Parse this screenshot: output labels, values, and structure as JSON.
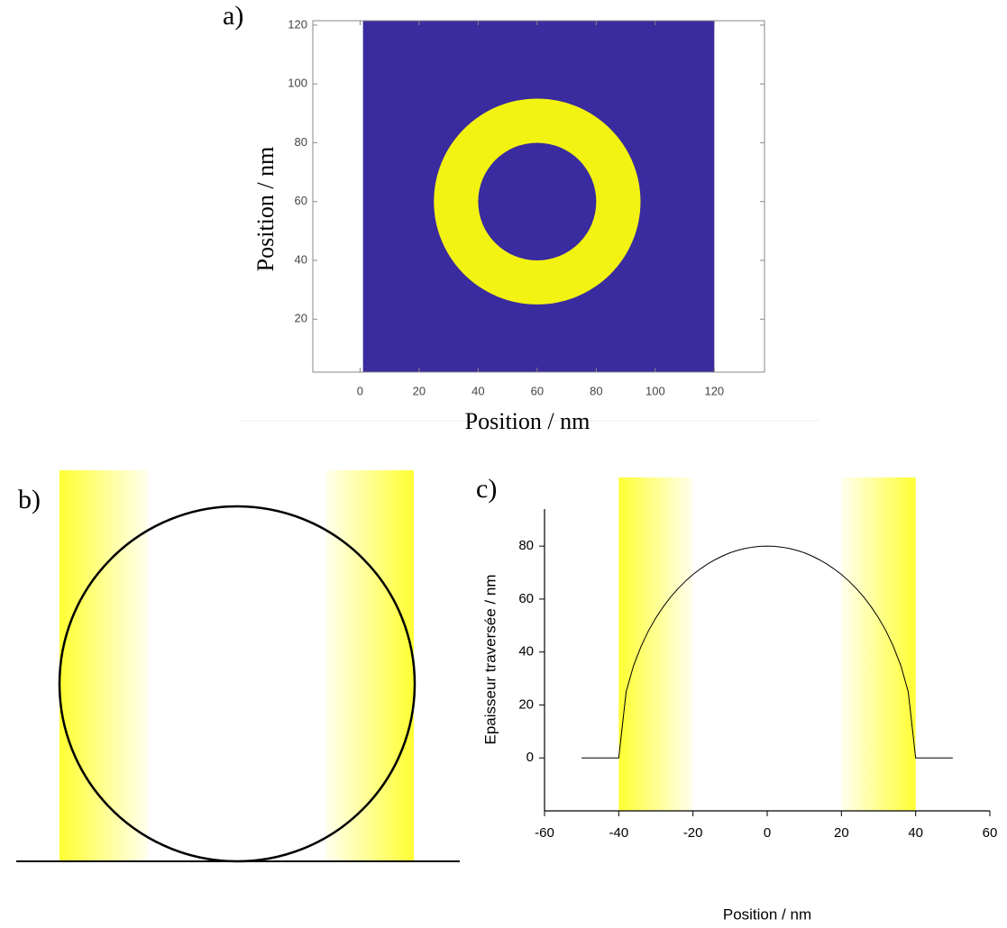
{
  "chart_data": [
    {
      "type": "heatmap",
      "label": "a)",
      "xlabel": "Position / nm",
      "ylabel": "Position / nm",
      "xlim": [
        -16,
        137
      ],
      "ylim": [
        2,
        121.5
      ],
      "xticks": [
        0,
        20,
        40,
        60,
        80,
        100,
        120
      ],
      "yticks": [
        20,
        40,
        60,
        80,
        100,
        120
      ],
      "image_xlim": [
        1,
        120
      ],
      "image_ylim": [
        2,
        121.5
      ],
      "background_color": "#3a2b9e",
      "ring_color": "#f3f313",
      "ring": {
        "center": [
          60,
          60
        ],
        "inner_radius": 20,
        "outer_radius": 35
      }
    },
    {
      "type": "diagram",
      "label": "b)"
    },
    {
      "type": "line",
      "label": "c)",
      "xlabel": "Position / nm",
      "ylabel": "Epaisseur traversée / nm",
      "xlim": [
        -60,
        60
      ],
      "ylim": [
        -20,
        94
      ],
      "xticks": [
        -60,
        -40,
        -20,
        0,
        20,
        40,
        60
      ],
      "yticks": [
        0,
        20,
        40,
        60,
        80
      ],
      "bands": [
        [
          -40,
          -20
        ],
        [
          20,
          40
        ]
      ],
      "band_color": "#ffff33",
      "x": [
        -50,
        -48,
        -46,
        -44,
        -42,
        -40,
        -38,
        -36,
        -34,
        -32,
        -30,
        -28,
        -26,
        -24,
        -22,
        -20,
        -18,
        -16,
        -14,
        -12,
        -10,
        -8,
        -6,
        -4,
        -2,
        0,
        2,
        4,
        6,
        8,
        10,
        12,
        14,
        16,
        18,
        20,
        22,
        24,
        26,
        28,
        30,
        32,
        34,
        36,
        38,
        40,
        42,
        44,
        46,
        48,
        50
      ],
      "series": [
        {
          "color": "#000000",
          "values": [
            0,
            0,
            0,
            0,
            0,
            0,
            25.0,
            34.9,
            42.1,
            48,
            52.9,
            57.1,
            60.8,
            64,
            66.8,
            69.3,
            71.4,
            73.3,
            74.9,
            76.3,
            77.5,
            78.4,
            79.1,
            79.6,
            79.9,
            80,
            79.9,
            79.6,
            79.1,
            78.4,
            77.5,
            76.3,
            74.9,
            73.3,
            71.4,
            69.3,
            66.8,
            64,
            60.8,
            57.1,
            52.9,
            48,
            42.1,
            34.9,
            25.0,
            0,
            0,
            0,
            0,
            0,
            0
          ]
        }
      ]
    }
  ]
}
